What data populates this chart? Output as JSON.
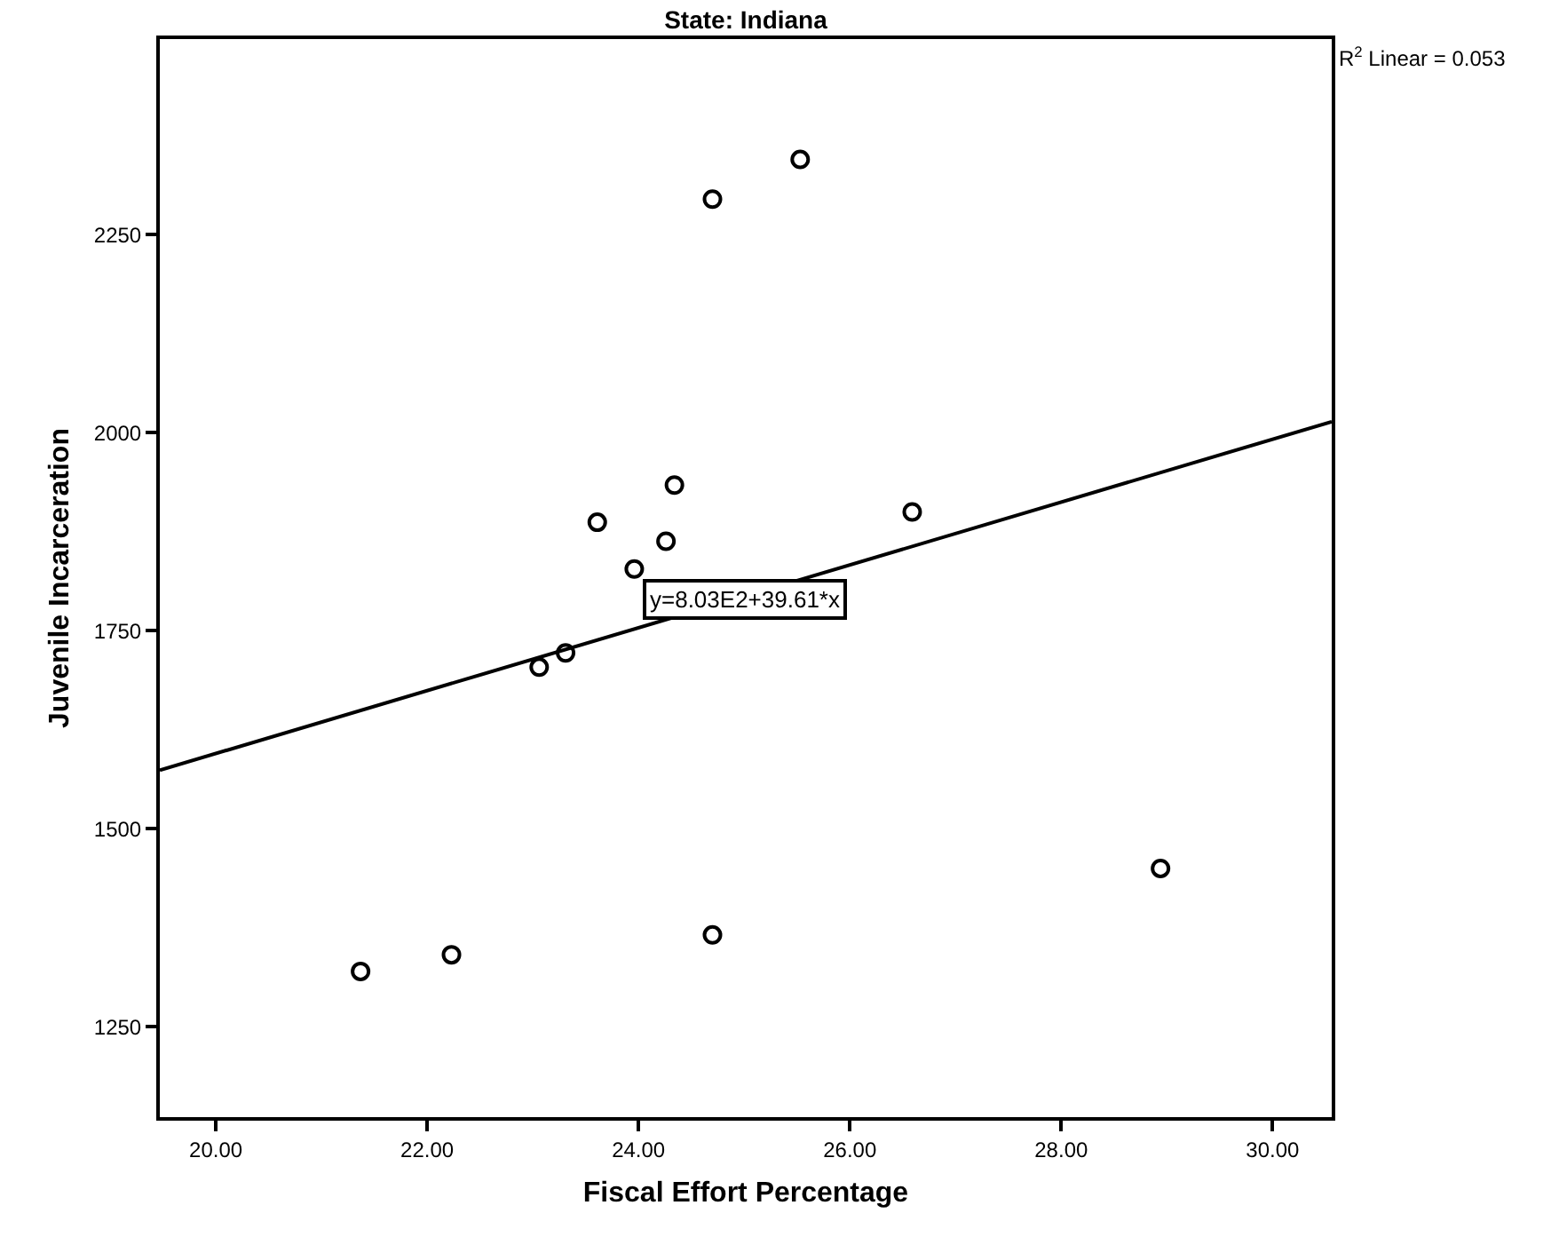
{
  "chart_data": {
    "type": "scatter",
    "title": "State: Indiana",
    "xlabel": "Fiscal Effort Percentage",
    "ylabel": "Juvenile Incarceration",
    "xlim": [
      19.47,
      30.56
    ],
    "ylim": [
      1136,
      2497
    ],
    "xticks": [
      {
        "value": 20,
        "label": "20.00"
      },
      {
        "value": 22,
        "label": "22.00"
      },
      {
        "value": 24,
        "label": "24.00"
      },
      {
        "value": 26,
        "label": "26.00"
      },
      {
        "value": 28,
        "label": "28.00"
      },
      {
        "value": 30,
        "label": "30.00"
      }
    ],
    "yticks": [
      1250,
      1500,
      1750,
      2000,
      2250
    ],
    "marker": "circle",
    "grid": false,
    "series": [
      {
        "color": "#000000",
        "x": [
          24.7,
          25.53,
          24.34,
          23.61,
          24.26,
          23.96,
          23.31,
          23.06,
          26.59,
          21.37,
          22.23,
          24.7,
          28.94
        ],
        "values": [
          2295,
          2345,
          1934,
          1887,
          1863,
          1828,
          1722,
          1704,
          1900,
          1320,
          1341,
          1366,
          1450
        ]
      },
      {
        "type": "line",
        "marker": "none",
        "color": "#000000",
        "x": [
          19.47,
          30.56
        ],
        "values": [
          1574,
          2014
        ]
      }
    ],
    "annotations": [
      "R$^{2}$ Linear = 0.053",
      {
        "text": "y=8.03E2+39.61*x",
        "x": 25.0,
        "y": 1790
      }
    ]
  }
}
